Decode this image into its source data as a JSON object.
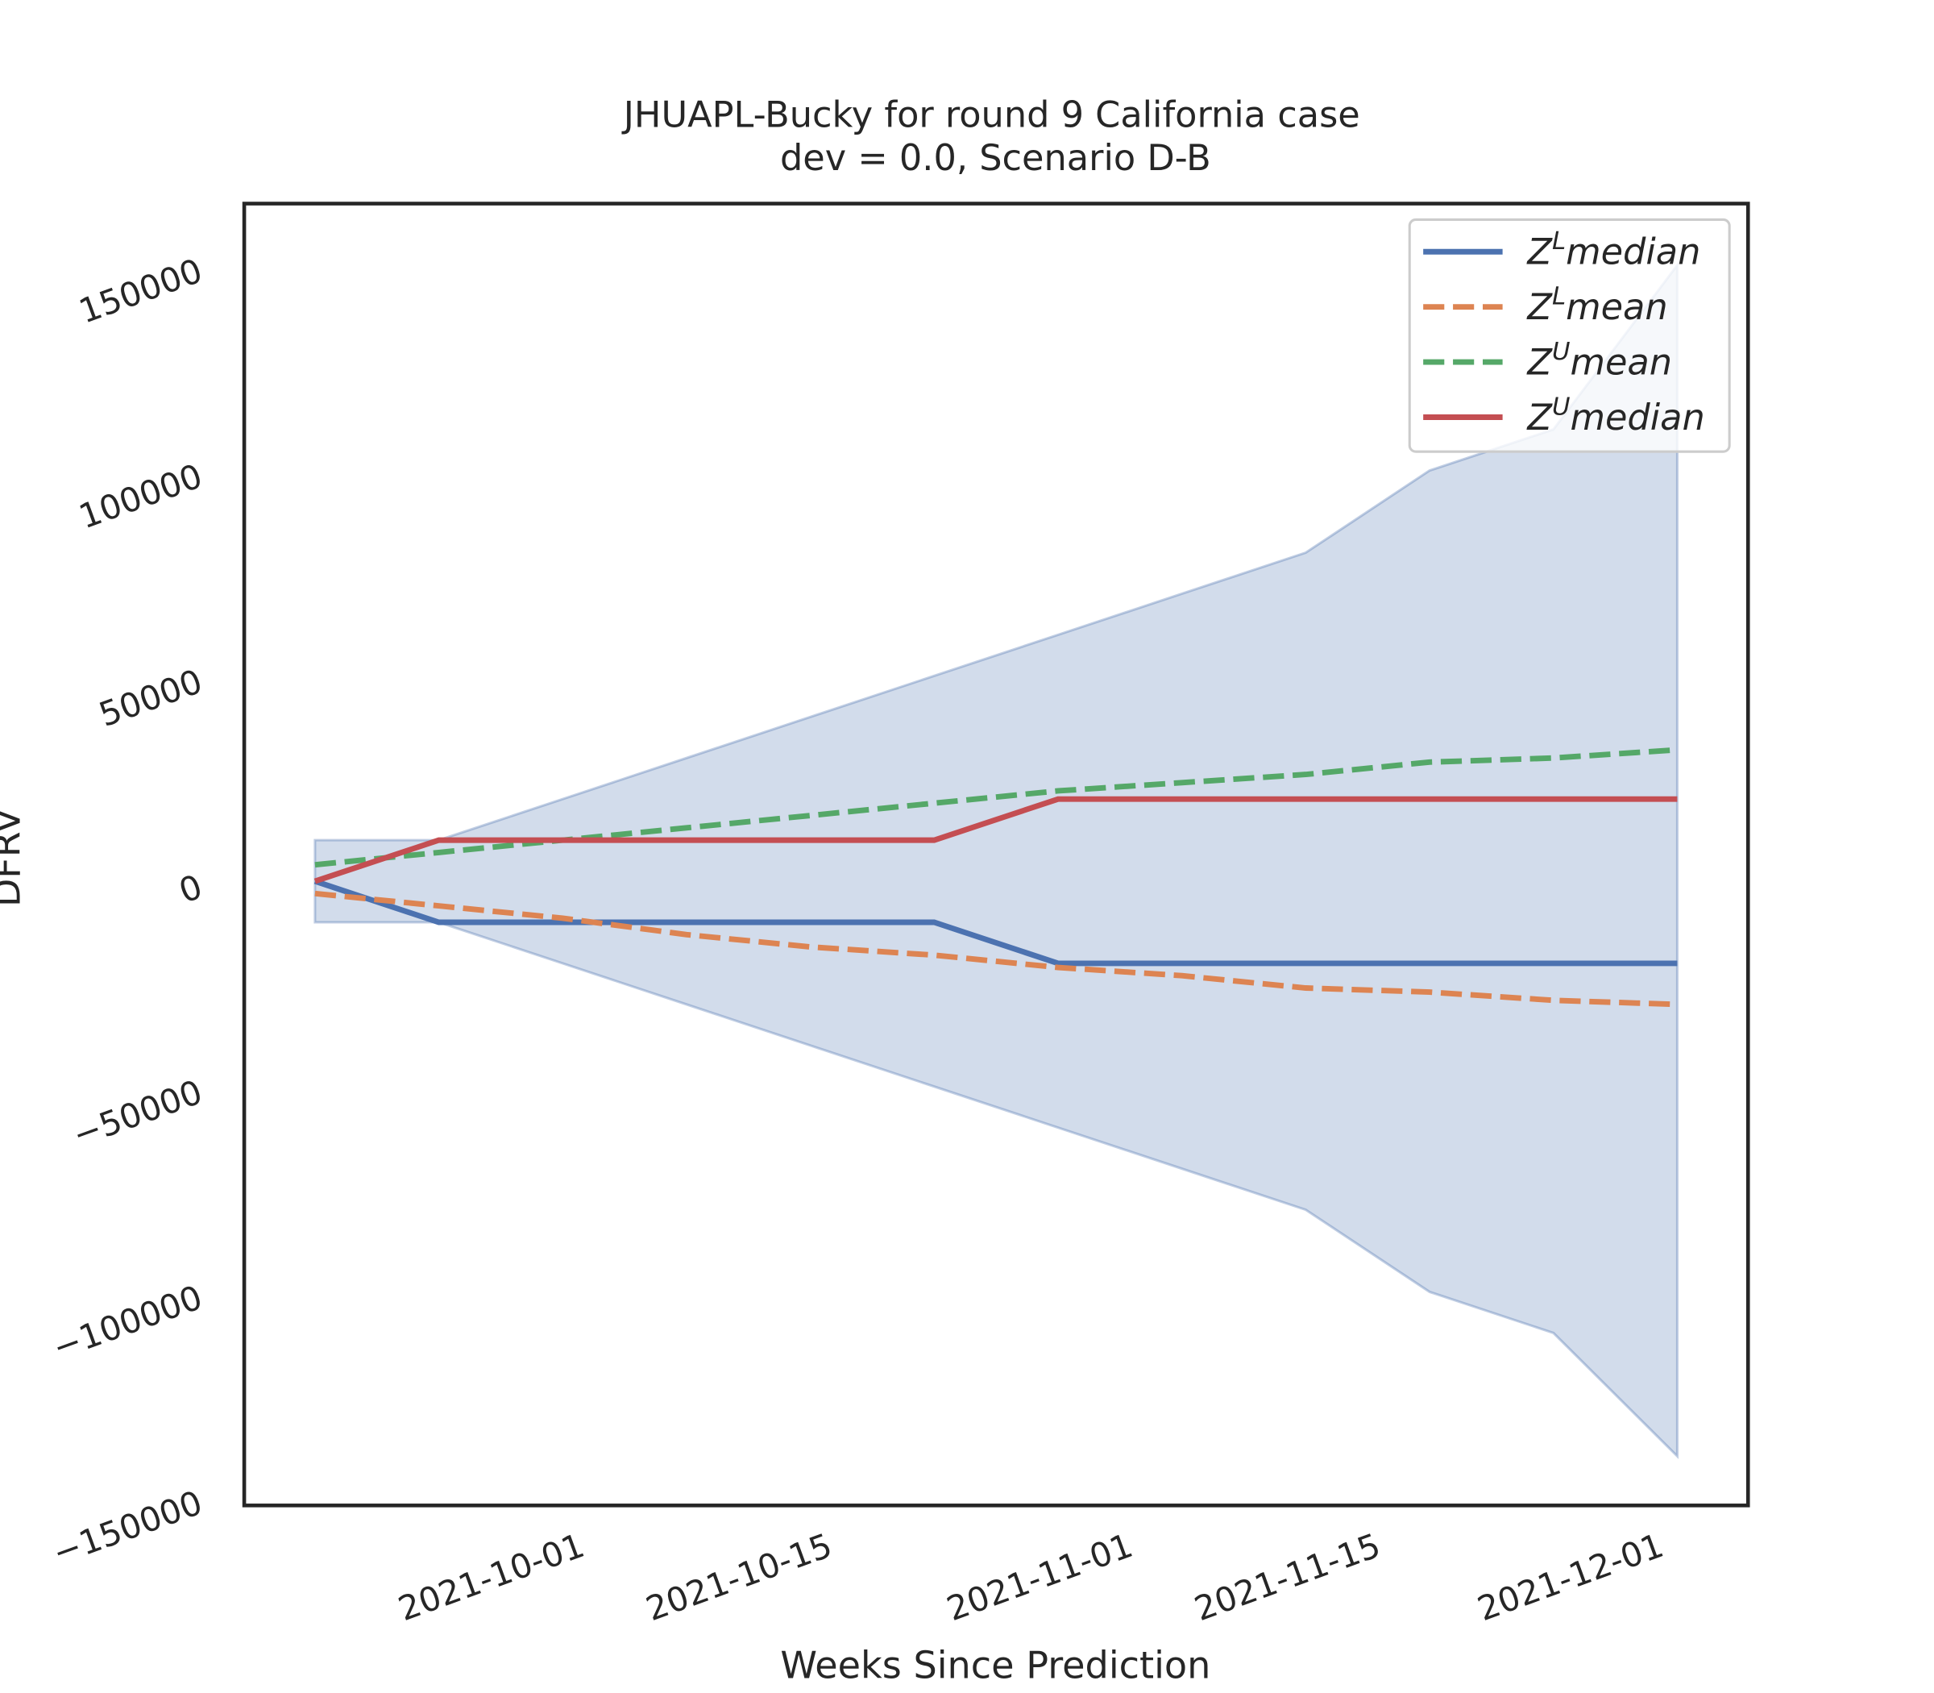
{
  "chart_data": {
    "type": "line",
    "title": [
      "JHUAPL-Bucky for round 9 California case",
      "dev = 0.0, Scenario D-B"
    ],
    "xlabel": "Weeks Since Prediction",
    "ylabel": "DFRV",
    "x": [
      "2021-09-16",
      "2021-09-23",
      "2021-09-30",
      "2021-10-07",
      "2021-10-14",
      "2021-10-21",
      "2021-10-28",
      "2021-11-04",
      "2021-11-11",
      "2021-11-18",
      "2021-11-25",
      "2021-12-02"
    ],
    "xlim": [
      "2021-09-12",
      "2021-12-06"
    ],
    "xticks": [
      "2021-10-01",
      "2021-10-15",
      "2021-11-01",
      "2021-11-15",
      "2021-12-01"
    ],
    "ylim": [
      -152000,
      165000
    ],
    "yticks": [
      {
        "value": -150000,
        "label": "−150000"
      },
      {
        "value": -100000,
        "label": "−100000"
      },
      {
        "value": -50000,
        "label": "−50000"
      },
      0,
      50000,
      100000,
      150000
    ],
    "band": {
      "color": "#4c72b0",
      "opacity": 0.25,
      "upper": [
        10000,
        10000,
        20000,
        30000,
        40000,
        50000,
        60000,
        70000,
        80000,
        100000,
        110000,
        150000
      ],
      "lower": [
        -10000,
        -10000,
        -20000,
        -30000,
        -40000,
        -50000,
        -60000,
        -70000,
        -80000,
        -100000,
        -110000,
        -140000
      ]
    },
    "series": [
      {
        "name": [
          "Z",
          "L",
          "median"
        ],
        "color": "#4c72b0",
        "linestyle": "solid",
        "values": [
          0,
          -10000,
          -10000,
          -10000,
          -10000,
          -10000,
          -20000,
          -20000,
          -20000,
          -20000,
          -20000,
          -20000
        ]
      },
      {
        "name": [
          "Z",
          "L",
          "mean"
        ],
        "color": "#dd8452",
        "linestyle": "dashed",
        "values": [
          -3000,
          -6000,
          -9000,
          -13000,
          -16000,
          -18000,
          -21000,
          -23000,
          -26000,
          -27000,
          -29000,
          -30000
        ]
      },
      {
        "name": [
          "Z",
          "U",
          "mean"
        ],
        "color": "#55a868",
        "linestyle": "dashed",
        "values": [
          4000,
          7000,
          10000,
          13000,
          16000,
          19000,
          22000,
          24000,
          26000,
          29000,
          30000,
          32000
        ]
      },
      {
        "name": [
          "Z",
          "U",
          "median"
        ],
        "color": "#c44e52",
        "linestyle": "solid",
        "values": [
          0,
          10000,
          10000,
          10000,
          10000,
          10000,
          20000,
          20000,
          20000,
          20000,
          20000,
          20000
        ]
      }
    ],
    "legend": "upper right"
  }
}
